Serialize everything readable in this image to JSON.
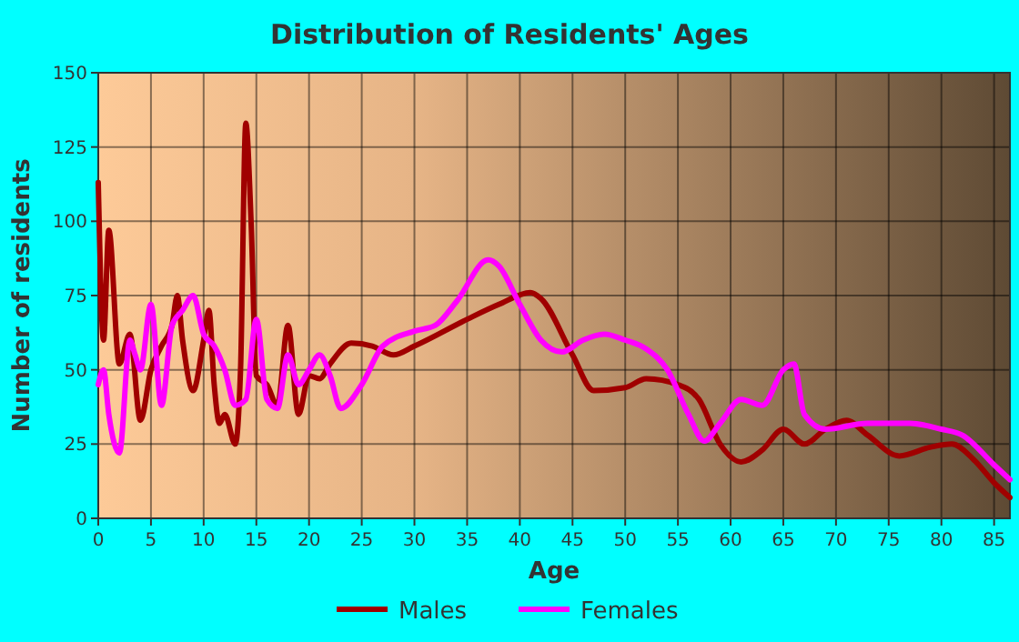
{
  "chart_data": {
    "type": "line",
    "title": "Distribution of Residents' Ages",
    "xlabel": "Age",
    "ylabel": "Number of residents",
    "xlim": [
      0,
      86.5
    ],
    "xticks": [
      0,
      5,
      10,
      15,
      20,
      25,
      30,
      35,
      40,
      45,
      50,
      55,
      60,
      65,
      70,
      75,
      80,
      85
    ],
    "ylim": [
      0,
      150
    ],
    "yticks": [
      0,
      25,
      50,
      75,
      100,
      125,
      150
    ],
    "grid": true,
    "legend": "bottom",
    "line_style": "solid",
    "marker": "none",
    "series": [
      {
        "name": "Males",
        "color": "#a00000",
        "x": [
          0,
          0.5,
          1,
          2,
          3,
          4,
          5,
          6,
          7,
          7.5,
          8,
          9,
          10,
          10.5,
          11,
          11.5,
          12,
          13,
          13.5,
          14,
          14.5,
          15,
          16,
          17,
          18,
          19,
          20,
          21,
          22,
          24,
          26,
          28,
          30,
          35,
          38,
          41,
          42,
          45,
          47,
          50,
          52,
          55,
          57,
          59,
          61,
          63,
          65,
          67,
          69,
          71,
          73,
          76,
          79,
          81,
          83,
          85,
          86.5
        ],
        "values": [
          113,
          60,
          97,
          52,
          62,
          33,
          50,
          58,
          65,
          75,
          60,
          43,
          60,
          70,
          45,
          32,
          35,
          25,
          50,
          133,
          100,
          48,
          45,
          38,
          65,
          35,
          48,
          47,
          52,
          59,
          58,
          55,
          58,
          67,
          72,
          76,
          74,
          55,
          43,
          44,
          47,
          45,
          40,
          25,
          19,
          23,
          30,
          25,
          30,
          33,
          28,
          21,
          24,
          25,
          20,
          12,
          7
        ]
      },
      {
        "name": "Females",
        "color": "#ff00ff",
        "x": [
          0,
          0.5,
          1,
          2,
          3,
          3.5,
          4,
          5,
          6,
          7,
          8,
          9,
          10,
          11,
          12,
          13,
          14,
          15,
          16,
          17,
          18,
          19,
          20,
          21,
          22,
          23,
          25,
          27,
          30,
          32,
          34,
          37,
          38,
          40,
          42,
          44,
          46,
          48,
          50,
          52,
          54,
          56,
          57.5,
          59,
          61,
          63,
          65,
          66,
          67,
          69,
          73,
          77,
          80,
          82,
          85,
          86.5
        ],
        "values": [
          45,
          50,
          35,
          22,
          60,
          55,
          50,
          72,
          38,
          65,
          70,
          75,
          62,
          58,
          50,
          38,
          40,
          67,
          40,
          37,
          55,
          45,
          50,
          55,
          48,
          37,
          45,
          58,
          63,
          65,
          73,
          87,
          85,
          72,
          60,
          56,
          60,
          62,
          60,
          57,
          50,
          35,
          26,
          32,
          40,
          38,
          50,
          52,
          35,
          30,
          32,
          32,
          30,
          28,
          18,
          13
        ]
      }
    ]
  }
}
